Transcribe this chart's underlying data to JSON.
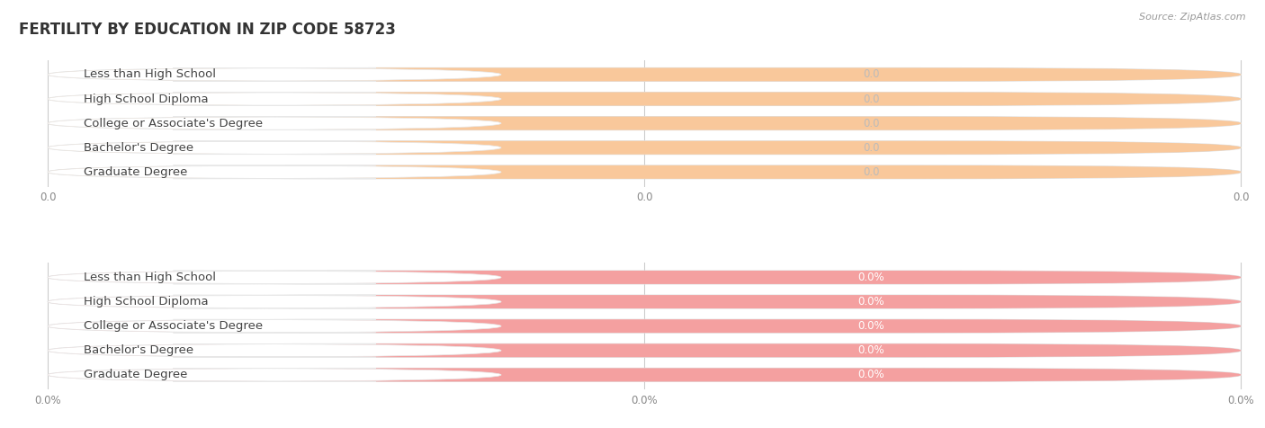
{
  "title": "FERTILITY BY EDUCATION IN ZIP CODE 58723",
  "source": "Source: ZipAtlas.com",
  "categories": [
    "Less than High School",
    "High School Diploma",
    "College or Associate's Degree",
    "Bachelor's Degree",
    "Graduate Degree"
  ],
  "top_values": [
    0.0,
    0.0,
    0.0,
    0.0,
    0.0
  ],
  "bottom_values": [
    0.0,
    0.0,
    0.0,
    0.0,
    0.0
  ],
  "top_bar_color": "#f9c89b",
  "bottom_bar_color": "#f4a0a0",
  "bar_bg_color": "#efefef",
  "bar_bg_edge_color": "#e0e0e0",
  "white_pill_color": "#ffffff",
  "background_color": "#ffffff",
  "title_fontsize": 12,
  "label_fontsize": 9.5,
  "value_fontsize": 8.5,
  "tick_fontsize": 8.5,
  "source_fontsize": 8,
  "grid_color": "#cccccc",
  "label_color": "#444444",
  "value_color_top": "#cccccc",
  "value_color_bottom": "#ffffff",
  "tick_color": "#888888"
}
